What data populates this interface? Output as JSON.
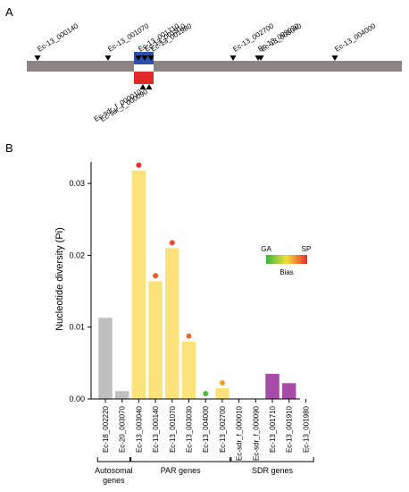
{
  "panel_a": {
    "letter": "A",
    "top_markers": [
      "Ec-13_000140",
      "Ec-13_001070",
      "Ec-13_001710",
      "Ec-13_001910",
      "Ec-13_001980",
      "Ec-13_002700",
      "Ec-13_003030",
      "Ec-13_003040",
      "Ec-13_004000"
    ],
    "bottom_markers": [
      "Ec-sdr_f_000010",
      "Ec-sdr_f_000090"
    ],
    "colors": {
      "chromosome": "#8c8484",
      "sdr_u": "#2b50b4",
      "sdr_v": "#e02a2a",
      "sdr_mid": "#ffffff"
    }
  },
  "panel_b": {
    "letter": "B"
  },
  "legend": {
    "left": "GA",
    "right": "SP",
    "caption": "Bias",
    "gradient": [
      "#3cb43c",
      "#f0e03c",
      "#f02828"
    ]
  },
  "chart_data": {
    "type": "bar",
    "ylabel": "Nucleotide diversity (Pi)",
    "xlabel": "",
    "ylim": [
      0,
      0.033
    ],
    "yticks": [
      "0.00",
      "0.01",
      "0.02",
      "0.03"
    ],
    "ytick_values": [
      0,
      0.01,
      0.02,
      0.03
    ],
    "categories": [
      "Ec-18_002220",
      "Ec-20_003070",
      "Ec-13_003040",
      "Ec-13_000140",
      "Ec-13_001070",
      "Ec-13_003030",
      "Ec-13_004000",
      "Ec-13_002700",
      "Ec-sdr_f_000010",
      "Ec-sdr_f_000090",
      "Ec-13_001710",
      "Ec-13_001910",
      "Ec-13_001980"
    ],
    "values": [
      0.0113,
      0.0011,
      0.0318,
      0.0164,
      0.021,
      0.008,
      0.0,
      0.0015,
      0.0,
      0.0,
      0.0035,
      0.0022,
      0.0
    ],
    "bar_colors": [
      "#c0c0c0",
      "#c0c0c0",
      "#fbe27a",
      "#fbe27a",
      "#fbe27a",
      "#fbe27a",
      "#fbe27a",
      "#fbe27a",
      "#a64ca6",
      "#a64ca6",
      "#a64ca6",
      "#a64ca6",
      "#a64ca6"
    ],
    "bias_dots": [
      {
        "index": 2,
        "color": "#ee3030"
      },
      {
        "index": 3,
        "color": "#ee5a2a"
      },
      {
        "index": 4,
        "color": "#ee4a2a"
      },
      {
        "index": 5,
        "color": "#ee6a2a"
      },
      {
        "index": 6,
        "color": "#52bb3a"
      },
      {
        "index": 7,
        "color": "#f0a030"
      }
    ],
    "groups": [
      {
        "label": "Autosomal genes",
        "from": 0,
        "to": 1
      },
      {
        "label": "PAR genes",
        "from": 2,
        "to": 7
      },
      {
        "label": "SDR genes",
        "from": 8,
        "to": 12
      }
    ]
  }
}
